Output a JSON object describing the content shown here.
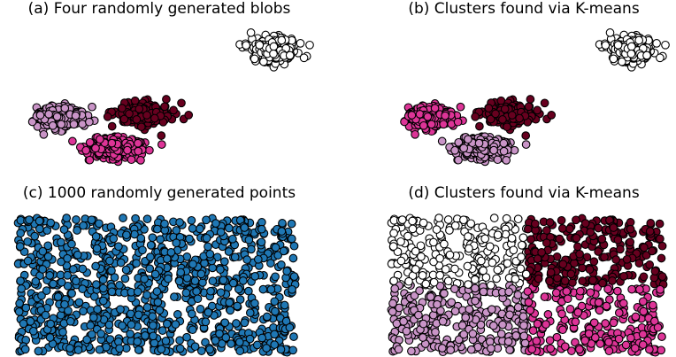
{
  "colors": {
    "white": "#ffffff",
    "light_purple": "#c994c7",
    "pink": "#dd3497",
    "dark_red": "#67001f",
    "blue": "#1f77b4",
    "edge": "#000000"
  },
  "chart_data": [
    {
      "type": "scatter",
      "title": "(a) Four randomly generated blobs",
      "xlabel": "",
      "ylabel": "",
      "axes_visible": false,
      "grid": false,
      "coloring": "generating blob",
      "series": [
        {
          "color": "white",
          "count": 250,
          "center": [
            5.2,
            1.55
          ],
          "spread": [
            0.85,
            0.38
          ]
        },
        {
          "color": "light_purple",
          "count": 250,
          "center": [
            -3.9,
            -1.2
          ],
          "spread": [
            0.85,
            0.35
          ]
        },
        {
          "color": "dark_red",
          "count": 250,
          "center": [
            -0.4,
            -1.1
          ],
          "spread": [
            0.95,
            0.38
          ]
        },
        {
          "color": "pink",
          "count": 250,
          "center": [
            -1.6,
            -2.45
          ],
          "spread": [
            0.95,
            0.35
          ]
        }
      ]
    },
    {
      "type": "scatter",
      "title": "(b) Clusters found via K-means",
      "xlabel": "",
      "ylabel": "",
      "axes_visible": false,
      "grid": false,
      "coloring": "K-means cluster",
      "series": [
        {
          "color": "white",
          "count": 250,
          "center": [
            5.2,
            1.55
          ],
          "spread": [
            0.85,
            0.38
          ]
        },
        {
          "color": "pink",
          "count": 250,
          "center": [
            -3.9,
            -1.2
          ],
          "spread": [
            0.85,
            0.35
          ]
        },
        {
          "color": "dark_red",
          "count": 250,
          "center": [
            -0.4,
            -1.1
          ],
          "spread": [
            0.95,
            0.38
          ]
        },
        {
          "color": "light_purple",
          "count": 250,
          "center": [
            -1.6,
            -2.45
          ],
          "spread": [
            0.95,
            0.35
          ]
        }
      ]
    },
    {
      "type": "scatter",
      "title": "(c) 1000 randomly generated points",
      "xlabel": "",
      "ylabel": "",
      "axes_visible": false,
      "grid": false,
      "distribution": "uniform",
      "count": 1000,
      "xlim": [
        0,
        1
      ],
      "ylim": [
        0,
        1
      ],
      "series": [
        {
          "color": "blue",
          "count": 1000
        }
      ]
    },
    {
      "type": "scatter",
      "title": "(d) Clusters found via K-means",
      "xlabel": "",
      "ylabel": "",
      "axes_visible": false,
      "grid": false,
      "distribution": "uniform",
      "count": 1000,
      "xlim": [
        0,
        1
      ],
      "ylim": [
        0,
        1
      ],
      "series": [
        {
          "color": "white",
          "region": "top-left"
        },
        {
          "color": "dark_red",
          "region": "top-right"
        },
        {
          "color": "light_purple",
          "region": "bottom-left"
        },
        {
          "color": "pink",
          "region": "bottom-right"
        }
      ]
    }
  ]
}
